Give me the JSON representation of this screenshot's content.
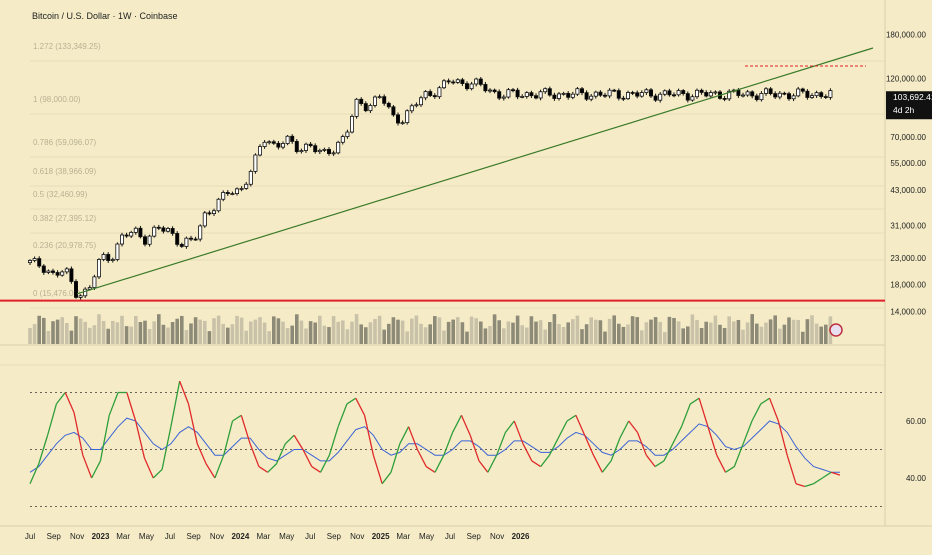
{
  "header": {
    "title": "Bitcoin / U.S. Dollar · 1W · Coinbase"
  },
  "colors": {
    "background": "#f5ecc7",
    "up": "#ffffff",
    "down": "#000000",
    "trendline": "#3a7a2a",
    "support": "#e0202a",
    "osc_fast_up": "#2e9e3a",
    "osc_fast_down": "#e02a2a",
    "osc_slow": "#3b63d6",
    "fib_text": "#b9b094"
  },
  "badge": {
    "price": "103,692.41",
    "countdown": "4d 2h"
  },
  "chart_data": [
    {
      "type": "line",
      "title": "Bitcoin / U.S. Dollar · 1W · Coinbase",
      "y_scale": "log",
      "y_ticks": [
        14000,
        18000,
        23000,
        31000,
        43000,
        55000,
        70000,
        120000,
        180000
      ],
      "y_tick_labels": [
        "14,000.00",
        "18,000.00",
        "23,000.00",
        "31,000.00",
        "43,000.00",
        "55,000.00",
        "70,000.00",
        "120,000.00",
        "180,000.00"
      ],
      "x_tick_labels": [
        "Jul",
        "Sep",
        "Nov",
        "2023",
        "Mar",
        "May",
        "Jul",
        "Sep",
        "Nov",
        "2024",
        "Mar",
        "May",
        "Jul",
        "Sep",
        "Nov",
        "2025",
        "Mar",
        "May",
        "Jul",
        "Sep",
        "Nov",
        "2026"
      ],
      "series": [
        {
          "name": "close",
          "x": [
            "2022-07",
            "2022-08",
            "2022-09",
            "2022-10",
            "2022-11",
            "2022-12",
            "2023-01",
            "2023-02",
            "2023-03",
            "2023-04",
            "2023-05",
            "2023-06",
            "2023-07",
            "2023-08",
            "2023-09",
            "2023-10",
            "2023-11",
            "2023-12",
            "2024-01",
            "2024-02",
            "2024-03",
            "2024-04",
            "2024-05",
            "2024-06",
            "2024-07",
            "2024-08",
            "2024-09",
            "2024-10",
            "2024-11",
            "2024-12",
            "2025-01",
            "2025-02",
            "2025-03",
            "2025-04",
            "2025-05",
            "2025-06",
            "2025-07",
            "2025-08",
            "2025-09",
            "2025-10",
            "2025-11"
          ],
          "values": [
            22000,
            21500,
            19500,
            20500,
            16500,
            16800,
            23000,
            23500,
            28000,
            29500,
            27200,
            30200,
            29500,
            26000,
            26800,
            34500,
            37500,
            42500,
            43000,
            51500,
            70000,
            64500,
            67500,
            63000,
            65000,
            59000,
            63500,
            70500,
            96500,
            93500,
            102000,
            84500,
            82500,
            94500,
            104500,
            107500,
            118000,
            115000,
            114500,
            110000,
            103692
          ]
        },
        {
          "name": "trendline",
          "x": [
            "2022-11",
            "2025-11"
          ],
          "values": [
            16500,
            113000
          ]
        },
        {
          "name": "support",
          "x": [
            "2022-07",
            "2025-11"
          ],
          "values": [
            15500,
            15500
          ]
        }
      ],
      "fib_levels": [
        {
          "label": "1.272 (133,349.25)"
        },
        {
          "label": "1 (98,000.00)"
        },
        {
          "label": "0.786 (59,096.07)"
        },
        {
          "label": "0.618 (38,966.09)"
        },
        {
          "label": "0.5 (32,460.99)"
        },
        {
          "label": "0.382 (27,395.12)"
        },
        {
          "label": "0.236 (20,978.75)"
        },
        {
          "label": "0 (15,476.00)"
        }
      ]
    },
    {
      "type": "line",
      "title": "",
      "y_ticks": [
        40,
        60
      ],
      "y_tick_labels": [
        "40.00",
        "60.00"
      ],
      "series": [
        {
          "name": "fast",
          "values": [
            38,
            45,
            55,
            66,
            70,
            63,
            48,
            40,
            46,
            62,
            70,
            70,
            60,
            47,
            40,
            43,
            58,
            74,
            66,
            52,
            45,
            40,
            48,
            60,
            62,
            52,
            44,
            42,
            45,
            52,
            55,
            50,
            44,
            42,
            48,
            58,
            66,
            68,
            62,
            48,
            38,
            42,
            52,
            58,
            50,
            44,
            42,
            48,
            56,
            62,
            55,
            46,
            42,
            48,
            56,
            60,
            52,
            46,
            44,
            48,
            54,
            60,
            62,
            55,
            48,
            42,
            46,
            54,
            60,
            56,
            48,
            44,
            46,
            52,
            58,
            66,
            68,
            58,
            48,
            42,
            44,
            52,
            60,
            66,
            68,
            60,
            48,
            38,
            37,
            38,
            40,
            42,
            41
          ]
        },
        {
          "name": "slow",
          "values": [
            42,
            44,
            48,
            52,
            55,
            56,
            54,
            50,
            50,
            54,
            58,
            61,
            60,
            56,
            52,
            50,
            52,
            56,
            58,
            56,
            52,
            48,
            48,
            51,
            54,
            54,
            50,
            47,
            46,
            48,
            50,
            50,
            48,
            46,
            46,
            49,
            53,
            57,
            58,
            55,
            50,
            48,
            49,
            52,
            52,
            50,
            48,
            48,
            50,
            53,
            53,
            51,
            48,
            48,
            50,
            53,
            53,
            51,
            49,
            49,
            51,
            54,
            56,
            55,
            52,
            49,
            48,
            50,
            53,
            53,
            51,
            48,
            48,
            50,
            53,
            56,
            59,
            58,
            55,
            51,
            50,
            51,
            54,
            57,
            60,
            59,
            56,
            51,
            47,
            44,
            43,
            42,
            42
          ]
        }
      ]
    }
  ]
}
